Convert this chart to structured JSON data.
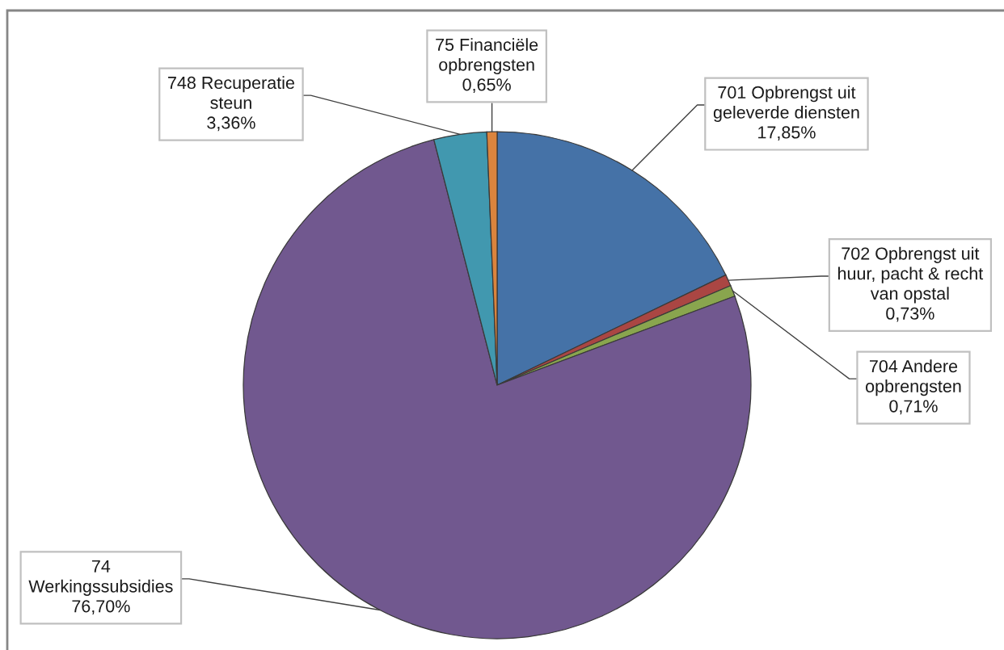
{
  "chart_data": {
    "type": "pie",
    "categories": [
      "701 Opbrengst uit\ngeleverde diensten",
      "702 Opbrengst uit\nhuur, pacht & recht\nvan opstal",
      "704 Andere\nopbrengsten",
      "74\nWerkingssubsidies",
      "748 Recuperatie\nsteun",
      "75 Financiële\nopbrengsten"
    ],
    "values": [
      17.85,
      0.73,
      0.71,
      76.7,
      3.36,
      0.65
    ],
    "value_labels": [
      "17,85%",
      "0,73%",
      "0,71%",
      "76,70%",
      "3,36%",
      "0,65%"
    ],
    "colors": [
      "#4572a7",
      "#aa4643",
      "#89a54e",
      "#71588f",
      "#4198af",
      "#db843d"
    ]
  }
}
